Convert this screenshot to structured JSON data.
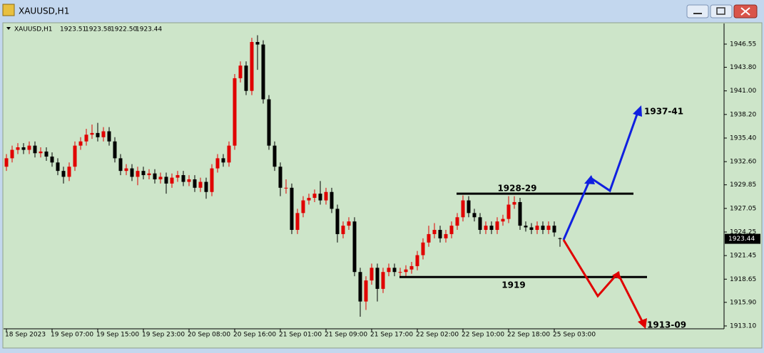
{
  "window_title": "XAUUSD,H1",
  "chart_data": {
    "type": "candlestick",
    "symbol": "XAUUSD,H1",
    "last_bar_labels": [
      "1923.51",
      "1923.58",
      "1922.50",
      "1923.44"
    ],
    "categories": [
      "18 Sep 2023",
      null,
      null,
      null,
      null,
      null,
      null,
      null,
      "19 Sep 07:00",
      null,
      null,
      null,
      null,
      null,
      null,
      null,
      "19 Sep 15:00",
      null,
      null,
      null,
      null,
      null,
      null,
      null,
      "19 Sep 23:00",
      null,
      null,
      null,
      null,
      null,
      null,
      null,
      "20 Sep 08:00",
      null,
      null,
      null,
      null,
      null,
      null,
      null,
      "20 Sep 16:00",
      null,
      null,
      null,
      null,
      null,
      null,
      null,
      "21 Sep 01:00",
      null,
      null,
      null,
      null,
      null,
      null,
      null,
      "21 Sep 09:00",
      null,
      null,
      null,
      null,
      null,
      null,
      null,
      "21 Sep 17:00",
      null,
      null,
      null,
      null,
      null,
      null,
      null,
      "22 Sep 02:00",
      null,
      null,
      null,
      null,
      null,
      null,
      null,
      "22 Sep 10:00",
      null,
      null,
      null,
      null,
      null,
      null,
      null,
      "22 Sep 18:00",
      null,
      null,
      null,
      null,
      null,
      null,
      null,
      "25 Sep 03:00",
      null
    ],
    "open": [
      1932.0,
      1933.0,
      1934.0,
      1934.3,
      1934.0,
      1934.5,
      1933.6,
      1933.8,
      1933.2,
      1932.5,
      1931.5,
      1930.8,
      1932.0,
      1934.5,
      1935.0,
      1935.8,
      1936.0,
      1935.5,
      1936.2,
      1935.0,
      1933.0,
      1931.5,
      1931.8,
      1930.8,
      1931.5,
      1931.0,
      1931.2,
      1930.5,
      1930.8,
      1930.0,
      1930.7,
      1931.0,
      1930.2,
      1930.5,
      1929.5,
      1930.2,
      1929.0,
      1931.8,
      1933.0,
      1932.5,
      1934.5,
      1942.5,
      1944.0,
      1941.0,
      1946.8,
      1946.5,
      1940.0,
      1934.5,
      1932.0,
      1929.5,
      1929.5,
      1924.5,
      1926.5,
      1928.0,
      1928.3,
      1928.8,
      1928.0,
      1929.0,
      1927.0,
      1924.0,
      1925.0,
      1925.5,
      1919.5,
      1916.0,
      1918.5,
      1920.0,
      1917.5,
      1919.5,
      1920.0,
      1919.5,
      1919.5,
      1919.8,
      1920.2,
      1921.5,
      1923.0,
      1924.0,
      1924.5,
      1923.5,
      1924.0,
      1925.0,
      1926.0,
      1928.0,
      1926.5,
      1926.0,
      1924.5,
      1925.0,
      1924.5,
      1925.5,
      1925.8,
      1927.5,
      1927.8,
      1925.0,
      1924.8,
      1924.5,
      1925.0,
      1924.5,
      1925.0,
      1923.51
    ],
    "high": [
      1933.5,
      1934.5,
      1934.8,
      1934.8,
      1935.0,
      1935.0,
      1934.3,
      1934.3,
      1933.7,
      1933.0,
      1932.0,
      1932.5,
      1935.0,
      1935.5,
      1936.5,
      1937.0,
      1937.2,
      1936.7,
      1936.7,
      1935.5,
      1933.5,
      1932.3,
      1932.3,
      1932.0,
      1932.0,
      1931.7,
      1931.7,
      1931.3,
      1931.3,
      1931.2,
      1931.5,
      1931.5,
      1931.0,
      1931.0,
      1930.7,
      1930.7,
      1932.3,
      1933.5,
      1933.5,
      1935.0,
      1943.0,
      1944.5,
      1944.5,
      1947.3,
      1947.6,
      1947.0,
      1940.5,
      1935.0,
      1932.5,
      1930.5,
      1930.0,
      1927.0,
      1928.5,
      1928.8,
      1929.3,
      1930.3,
      1929.5,
      1929.5,
      1927.5,
      1925.5,
      1926.0,
      1926.0,
      1920.0,
      1919.0,
      1920.5,
      1920.5,
      1920.0,
      1920.5,
      1920.5,
      1920.0,
      1920.3,
      1920.7,
      1922.0,
      1923.5,
      1925.0,
      1925.3,
      1925.0,
      1924.5,
      1925.5,
      1926.5,
      1928.6,
      1928.5,
      1927.0,
      1926.5,
      1925.5,
      1925.5,
      1926.0,
      1926.3,
      1928.5,
      1928.5,
      1928.3,
      1925.5,
      1925.3,
      1925.5,
      1925.5,
      1925.5,
      1925.5,
      1923.58
    ],
    "low": [
      1931.5,
      1932.5,
      1933.5,
      1933.5,
      1933.5,
      1933.1,
      1933.1,
      1932.7,
      1932.0,
      1931.0,
      1930.0,
      1930.3,
      1931.5,
      1934.0,
      1934.5,
      1935.3,
      1935.0,
      1935.0,
      1934.5,
      1932.5,
      1931.0,
      1931.0,
      1930.3,
      1929.8,
      1930.5,
      1930.5,
      1930.0,
      1930.0,
      1928.8,
      1929.5,
      1930.2,
      1929.7,
      1929.7,
      1929.0,
      1929.0,
      1928.2,
      1928.5,
      1931.3,
      1932.0,
      1932.0,
      1934.0,
      1942.0,
      1940.5,
      1940.5,
      1943.5,
      1939.5,
      1934.0,
      1931.5,
      1928.5,
      1928.8,
      1924.0,
      1924.0,
      1926.0,
      1927.5,
      1927.8,
      1927.5,
      1927.5,
      1926.5,
      1923.0,
      1923.5,
      1924.5,
      1919.0,
      1914.2,
      1915.0,
      1918.0,
      1916.0,
      1917.0,
      1919.0,
      1919.0,
      1919.0,
      1919.0,
      1919.3,
      1919.7,
      1921.0,
      1922.5,
      1923.5,
      1923.0,
      1923.0,
      1923.5,
      1924.5,
      1925.5,
      1926.0,
      1925.5,
      1924.0,
      1924.0,
      1924.0,
      1924.0,
      1925.0,
      1925.3,
      1927.0,
      1924.5,
      1924.3,
      1924.0,
      1924.0,
      1924.0,
      1924.0,
      1923.7,
      1922.5
    ],
    "close": [
      1933.0,
      1934.0,
      1934.3,
      1934.0,
      1934.5,
      1933.6,
      1933.8,
      1933.2,
      1932.5,
      1931.5,
      1930.8,
      1932.0,
      1934.5,
      1935.0,
      1935.8,
      1936.0,
      1935.5,
      1936.2,
      1935.0,
      1933.0,
      1931.5,
      1931.8,
      1930.8,
      1931.5,
      1931.0,
      1931.2,
      1930.5,
      1930.8,
      1930.0,
      1930.7,
      1931.0,
      1930.2,
      1930.5,
      1929.5,
      1930.2,
      1929.0,
      1931.8,
      1933.0,
      1932.5,
      1934.5,
      1942.5,
      1944.0,
      1941.0,
      1946.8,
      1946.5,
      1940.0,
      1934.5,
      1932.0,
      1929.5,
      1929.5,
      1924.5,
      1926.5,
      1928.0,
      1928.3,
      1928.8,
      1928.0,
      1929.0,
      1927.0,
      1924.0,
      1925.0,
      1925.5,
      1919.5,
      1916.0,
      1918.5,
      1920.0,
      1917.5,
      1919.5,
      1920.0,
      1919.5,
      1919.5,
      1919.8,
      1920.2,
      1921.5,
      1923.0,
      1924.0,
      1924.5,
      1923.5,
      1924.0,
      1925.0,
      1926.0,
      1928.0,
      1926.5,
      1926.0,
      1924.5,
      1925.0,
      1924.5,
      1925.5,
      1925.8,
      1927.5,
      1927.8,
      1925.0,
      1924.8,
      1924.5,
      1925.0,
      1924.5,
      1925.0,
      1924.2,
      1923.44
    ],
    "up_color": "#e00000",
    "down_color": "#000000",
    "ylim": [
      1912.76,
      1948.66
    ],
    "yticks": [
      1946.55,
      {
        "value": 1943.8,
        "label": "1943.80"
      },
      {
        "value": 1941,
        "label": "1941.00"
      },
      {
        "value": 1938.2,
        "label": "1938.20"
      },
      {
        "value": 1935.4,
        "label": "1935.40"
      },
      {
        "value": 1932.6,
        "label": "1932.60"
      },
      1929.85,
      1927.05,
      1924.25,
      1921.45,
      1918.65,
      {
        "value": 1915.9,
        "label": "1915.90"
      },
      {
        "value": 1913.1,
        "label": "1913.10"
      }
    ],
    "levels": [
      {
        "label": "1928-29",
        "value": 1928.8
      },
      {
        "label": "1919",
        "value": 1918.9
      }
    ],
    "targets": [
      "1937-41",
      "1913-09"
    ]
  }
}
